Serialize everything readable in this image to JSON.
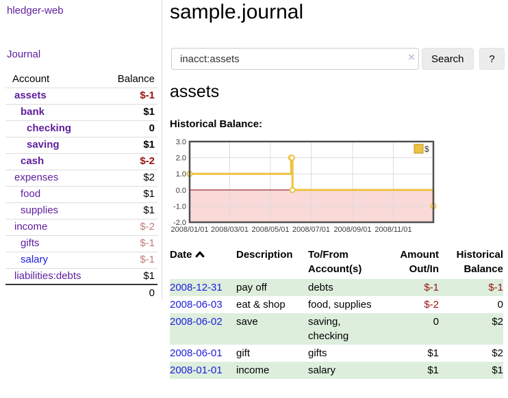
{
  "colors": {
    "link_visited": "#5e1d9d",
    "link_unvisited": "#1c1cdb",
    "negative_strong": "#991111",
    "negative_muted": "#bd7b7b",
    "row_stripe_green": "#ddeedd",
    "chart_series_gold": "#edc240",
    "chart_negative_region": "#fad9d9",
    "chart_zero_line": "#8b1515"
  },
  "brand": "hledger-web",
  "nav": {
    "journal": "Journal"
  },
  "sidebar_table": {
    "headers": {
      "account": "Account",
      "balance": "Balance"
    },
    "rows": [
      {
        "name": "assets",
        "level": 1,
        "emphasis": true,
        "link": "visited",
        "balance": "$-1",
        "balance_style": "neg-strong"
      },
      {
        "name": "bank",
        "level": 2,
        "emphasis": true,
        "link": "visited",
        "balance": "$1",
        "balance_style": "normal"
      },
      {
        "name": "checking",
        "level": 3,
        "emphasis": true,
        "link": "visited",
        "balance": "0",
        "balance_style": "normal"
      },
      {
        "name": "saving",
        "level": 3,
        "emphasis": true,
        "link": "visited",
        "balance": "$1",
        "balance_style": "normal"
      },
      {
        "name": "cash",
        "level": 2,
        "emphasis": true,
        "link": "visited",
        "balance": "$-2",
        "balance_style": "neg-strong"
      },
      {
        "name": "expenses",
        "level": 1,
        "emphasis": false,
        "link": "visited",
        "balance": "$2",
        "balance_style": "normal"
      },
      {
        "name": "food",
        "level": 2,
        "emphasis": false,
        "link": "visited",
        "balance": "$1",
        "balance_style": "normal"
      },
      {
        "name": "supplies",
        "level": 2,
        "emphasis": false,
        "link": "visited",
        "balance": "$1",
        "balance_style": "normal"
      },
      {
        "name": "income",
        "level": 1,
        "emphasis": false,
        "link": "visited",
        "balance": "$-2",
        "balance_style": "neg-muted"
      },
      {
        "name": "gifts",
        "level": 2,
        "emphasis": false,
        "link": "visited",
        "balance": "$-1",
        "balance_style": "neg-muted"
      },
      {
        "name": "salary",
        "level": 2,
        "emphasis": false,
        "link": "unvisited",
        "balance": "$-1",
        "balance_style": "neg-muted"
      },
      {
        "name": "liabilities:debts",
        "level": 1,
        "emphasis": false,
        "link": "visited",
        "balance": "$1",
        "balance_style": "normal"
      }
    ],
    "total": "0"
  },
  "main": {
    "title": "sample.journal",
    "search": {
      "value": "inacct:assets",
      "clear_label": "×",
      "button_label": "Search",
      "help_label": "?"
    },
    "account_heading": "assets",
    "chart_label": "Historical Balance:"
  },
  "chart_data": {
    "type": "line",
    "title": "Historical Balance:",
    "step": true,
    "x_range": [
      "2008-01-01",
      "2008-12-31"
    ],
    "x_ticks": [
      {
        "date": "2008-01-01",
        "label": "2008/01/01"
      },
      {
        "date": "2008-03-01",
        "label": "2008/03/01"
      },
      {
        "date": "2008-05-01",
        "label": "2008/05/01"
      },
      {
        "date": "2008-07-01",
        "label": "2008/07/01"
      },
      {
        "date": "2008-09-01",
        "label": "2008/09/01"
      },
      {
        "date": "2008-11-01",
        "label": "2008/11/01"
      }
    ],
    "y_ticks": [
      3.0,
      2.0,
      1.0,
      0.0,
      -1.0,
      -2.0
    ],
    "ylim": [
      -2,
      3
    ],
    "grid": true,
    "legend": {
      "label": "$",
      "position": "top-right"
    },
    "series": [
      {
        "name": "$",
        "color": "#edc240",
        "points": [
          {
            "x": "2008-01-01",
            "y": 1
          },
          {
            "x": "2008-06-01",
            "y": 2
          },
          {
            "x": "2008-06-02",
            "y": 2
          },
          {
            "x": "2008-06-03",
            "y": 0
          },
          {
            "x": "2008-12-31",
            "y": -1
          }
        ]
      }
    ],
    "negative_region_color": "#fad9d9",
    "zero_line_color": "#8b1515"
  },
  "register_table": {
    "headers": {
      "date": "Date",
      "description": "Description",
      "accounts": "To/From Account(s)",
      "amount": "Amount Out/In",
      "balance": "Historical Balance"
    },
    "sort": {
      "column": "date",
      "direction": "ascending"
    },
    "rows": [
      {
        "date": "2008-12-31",
        "description": "pay off",
        "accounts": "debts",
        "amount": "$-1",
        "amount_negative": true,
        "balance": "$-1",
        "balance_negative": true,
        "shaded": true
      },
      {
        "date": "2008-06-03",
        "description": "eat & shop",
        "accounts": "food, supplies",
        "amount": "$-2",
        "amount_negative": true,
        "balance": "0",
        "balance_negative": false,
        "shaded": false
      },
      {
        "date": "2008-06-02",
        "description": "save",
        "accounts": "saving,\nchecking",
        "amount": "0",
        "amount_negative": false,
        "balance": "$2",
        "balance_negative": false,
        "shaded": true
      },
      {
        "date": "2008-06-01",
        "description": "gift",
        "accounts": "gifts",
        "amount": "$1",
        "amount_negative": false,
        "balance": "$2",
        "balance_negative": false,
        "shaded": false
      },
      {
        "date": "2008-01-01",
        "description": "income",
        "accounts": "salary",
        "amount": "$1",
        "amount_negative": false,
        "balance": "$1",
        "balance_negative": false,
        "shaded": true
      }
    ]
  }
}
